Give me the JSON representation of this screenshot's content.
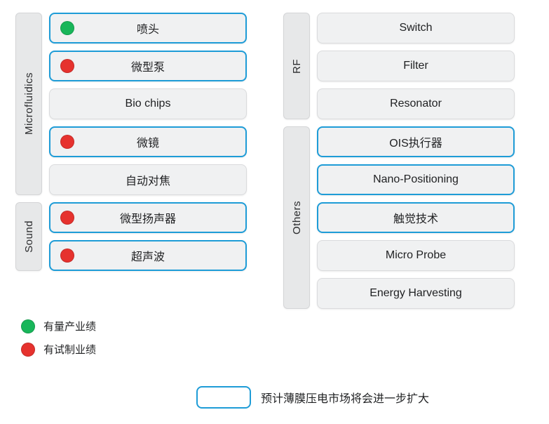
{
  "colors": {
    "highlight_border": "#1e9cd7",
    "item_bg": "#f0f1f2",
    "cat_bg": "#e7e8e9",
    "green": "#18b65a",
    "red": "#e6322e",
    "text": "#1f2022"
  },
  "left": [
    {
      "category": "Microfluidics",
      "items": [
        {
          "label": "喷头",
          "dot": "green",
          "highlight": true
        },
        {
          "label": "微型泵",
          "dot": "red",
          "highlight": true
        },
        {
          "label": "Bio chips",
          "dot": null,
          "highlight": false
        },
        {
          "label": "微镜",
          "dot": "red",
          "highlight": true
        },
        {
          "label": "自动对焦",
          "dot": null,
          "highlight": false
        }
      ]
    },
    {
      "category": "Sound",
      "items": [
        {
          "label": "微型扬声器",
          "dot": "red",
          "highlight": true
        },
        {
          "label": "超声波",
          "dot": "red",
          "highlight": true
        }
      ]
    }
  ],
  "right": [
    {
      "category": "RF",
      "items": [
        {
          "label": "Switch",
          "dot": null,
          "highlight": false
        },
        {
          "label": "Filter",
          "dot": null,
          "highlight": false
        },
        {
          "label": "Resonator",
          "dot": null,
          "highlight": false
        }
      ]
    },
    {
      "category": "Others",
      "items": [
        {
          "label": "OIS执行器",
          "dot": null,
          "highlight": true
        },
        {
          "label": "Nano-Positioning",
          "dot": null,
          "highlight": true
        },
        {
          "label": "触觉技术",
          "dot": null,
          "highlight": true
        },
        {
          "label": "Micro Probe",
          "dot": null,
          "highlight": false
        },
        {
          "label": "Energy Harvesting",
          "dot": null,
          "highlight": false
        }
      ]
    }
  ],
  "legend": {
    "green_label": "有量产业绩",
    "red_label": "有试制业绩",
    "box_label": "预计薄膜压电市场将会进一步扩大"
  }
}
